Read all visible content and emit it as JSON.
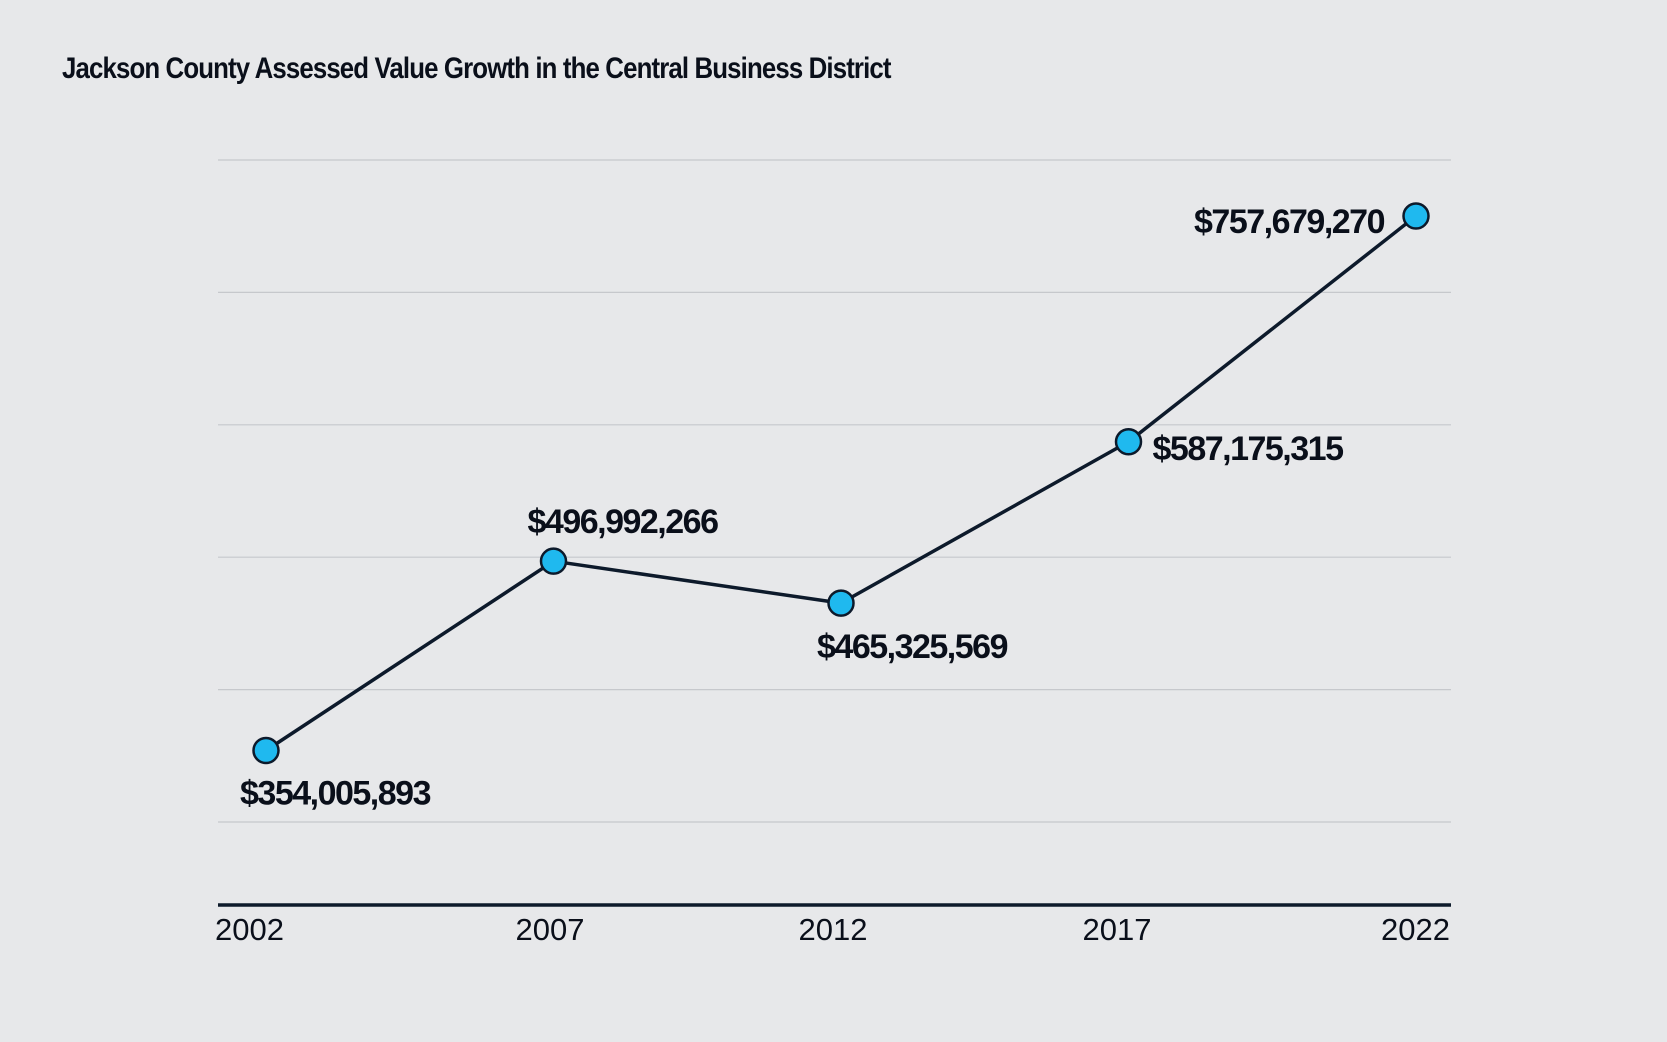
{
  "chart_data": {
    "type": "line",
    "title": "Jackson County Assessed Value Growth in the Central Business District",
    "xlabel": "",
    "ylabel": "",
    "categories": [
      "2002",
      "2007",
      "2012",
      "2017",
      "2022"
    ],
    "series": [
      {
        "values": [
          354005893,
          496992266,
          465325569,
          587175315,
          757679270
        ],
        "labels": [
          "$354,005,893",
          "$496,992,266",
          "$465,325,569",
          "$587,175,315",
          "$757,679,270"
        ]
      }
    ],
    "ylim": [
      300000000,
      800000000
    ],
    "grid": true,
    "legend": "none",
    "colors": {
      "line": "#0d1a2b",
      "marker": "#1fb9ef",
      "background": "#e7e8ea"
    }
  }
}
